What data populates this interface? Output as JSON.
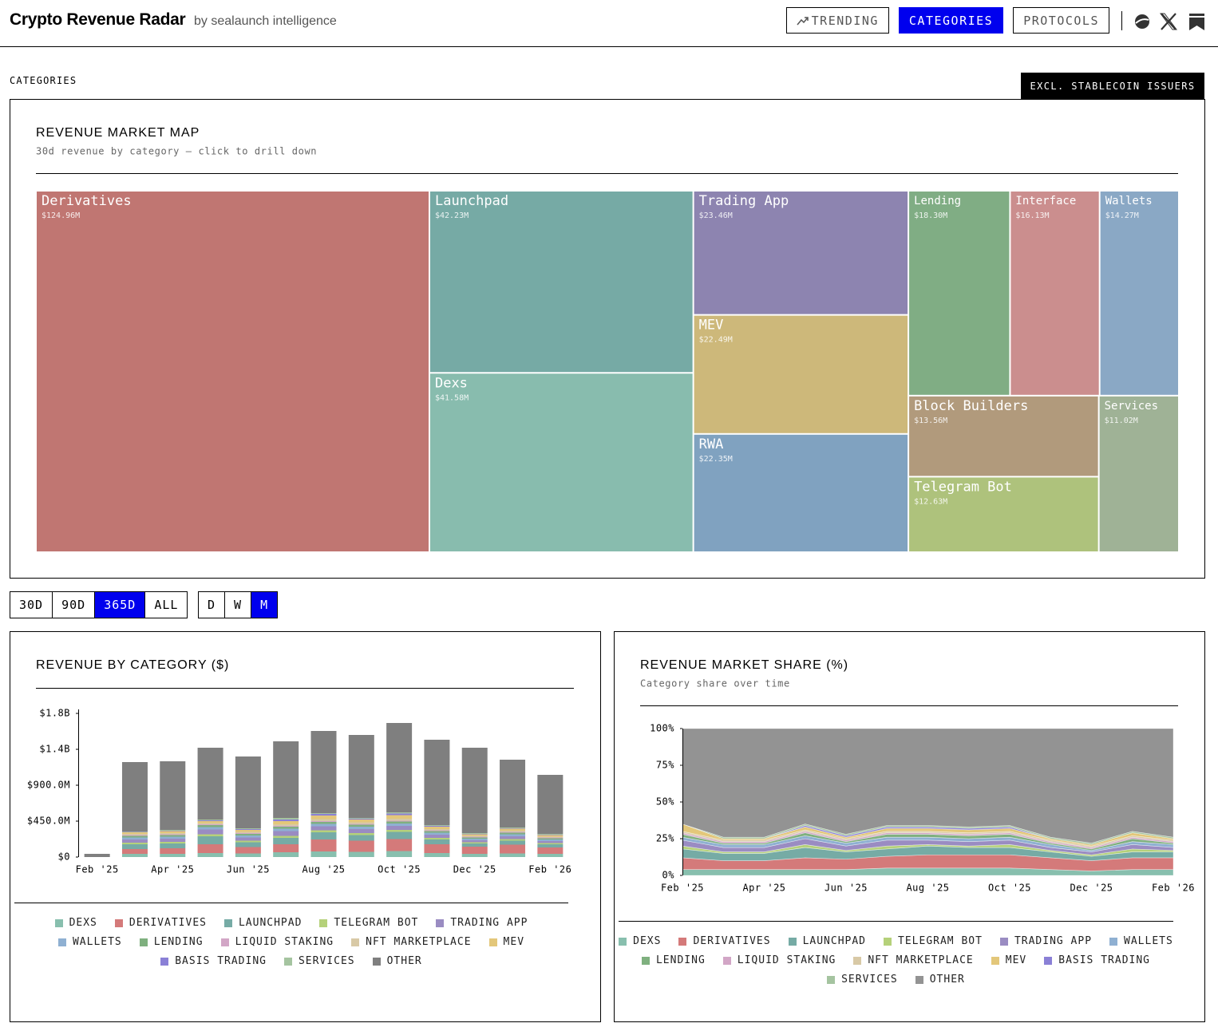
{
  "header": {
    "title": "Crypto Revenue Radar",
    "subtitle": "by sealaunch intelligence"
  },
  "nav": {
    "items": [
      "TRENDING",
      "CATEGORIES",
      "PROTOCOLS"
    ],
    "selected": 1
  },
  "section": {
    "label": "CATEGORIES",
    "toggle": "EXCL. STABLECOIN ISSUERS"
  },
  "filters": {
    "ranges": [
      "30D",
      "90D",
      "365D",
      "ALL"
    ],
    "range_selected": 2,
    "intervals": [
      "D",
      "W",
      "M"
    ],
    "interval_selected": 2
  },
  "chart_data": [
    {
      "type": "treemap",
      "title": "REVENUE MARKET MAP",
      "subtitle": "30d revenue by category — click to drill down",
      "categories": [
        "Derivatives",
        "Launchpad",
        "Dexs",
        "Trading App",
        "MEV",
        "RWA",
        "Lending",
        "Interface",
        "Wallets",
        "Block Builders",
        "Telegram Bot",
        "Services"
      ],
      "values": [
        124.96,
        42.23,
        41.58,
        23.46,
        22.49,
        22.35,
        18.3,
        16.13,
        14.27,
        13.56,
        12.63,
        11.02
      ],
      "value_labels": [
        "$124.96M",
        "$42.23M",
        "$41.58M",
        "$23.46M",
        "$22.49M",
        "$22.35M",
        "$18.30M",
        "$16.13M",
        "$14.27M",
        "$13.56M",
        "$12.63M",
        "$11.02M"
      ],
      "colors": [
        "#c07672",
        "#76aaa5",
        "#88bcae",
        "#8d84b0",
        "#cdb87a",
        "#80a2c0",
        "#80ad84",
        "#cb8e8e",
        "#8aa8c5",
        "#b19a7c",
        "#aec27c",
        "#9fb296"
      ]
    },
    {
      "type": "bar",
      "stacked": true,
      "title": "REVENUE BY CATEGORY ($)",
      "categories": [
        "Feb '25",
        null,
        "Apr '25",
        null,
        "Jun '25",
        null,
        "Aug '25",
        null,
        "Oct '25",
        null,
        "Dec '25",
        null,
        "Feb '26"
      ],
      "ylim": [
        0,
        1800
      ],
      "yticks": [
        {
          "value": 0,
          "label": "$0"
        },
        {
          "value": 450,
          "label": "$450.0M"
        },
        {
          "value": 900,
          "label": "$900.0M"
        },
        {
          "value": 1350,
          "label": "$1.4B"
        },
        {
          "value": 1800,
          "label": "$1.8B"
        }
      ],
      "series": [
        {
          "name": "DEXS",
          "color": "#88bfae",
          "values": [
            0,
            40,
            40,
            50,
            45,
            60,
            70,
            65,
            75,
            50,
            40,
            45,
            40
          ]
        },
        {
          "name": "DERIVATIVES",
          "color": "#d47a7a",
          "values": [
            0,
            60,
            70,
            110,
            80,
            100,
            150,
            140,
            150,
            110,
            90,
            110,
            80
          ]
        },
        {
          "name": "LAUNCHPAD",
          "color": "#76aba5",
          "values": [
            0,
            60,
            60,
            100,
            60,
            80,
            90,
            70,
            90,
            60,
            40,
            50,
            40
          ]
        },
        {
          "name": "TELEGRAM BOT",
          "color": "#b5d17a",
          "values": [
            0,
            20,
            20,
            25,
            20,
            25,
            25,
            25,
            25,
            20,
            15,
            20,
            15
          ]
        },
        {
          "name": "TRADING APP",
          "color": "#9a8cc2",
          "values": [
            0,
            40,
            40,
            60,
            40,
            60,
            50,
            50,
            50,
            40,
            25,
            35,
            25
          ]
        },
        {
          "name": "WALLETS",
          "color": "#8fb0d2",
          "values": [
            0,
            25,
            25,
            30,
            25,
            30,
            30,
            30,
            30,
            25,
            20,
            25,
            20
          ]
        },
        {
          "name": "LENDING",
          "color": "#7fb07f",
          "values": [
            0,
            20,
            20,
            25,
            20,
            25,
            25,
            25,
            25,
            20,
            15,
            20,
            15
          ]
        },
        {
          "name": "LIQUID STAKING",
          "color": "#d2a6c6",
          "values": [
            0,
            10,
            10,
            10,
            10,
            10,
            10,
            10,
            10,
            10,
            10,
            10,
            10
          ]
        },
        {
          "name": "NFT MARKETPLACE",
          "color": "#d8c9a6",
          "values": [
            0,
            15,
            15,
            15,
            15,
            20,
            25,
            20,
            25,
            15,
            10,
            15,
            10
          ]
        },
        {
          "name": "MEV",
          "color": "#e3c77a",
          "values": [
            0,
            20,
            25,
            25,
            25,
            40,
            45,
            35,
            45,
            30,
            20,
            25,
            20
          ]
        },
        {
          "name": "BASIS TRADING",
          "color": "#8a80d6",
          "values": [
            0,
            5,
            5,
            10,
            10,
            20,
            20,
            10,
            20,
            10,
            5,
            5,
            5
          ]
        },
        {
          "name": "SERVICES",
          "color": "#a5c4a0",
          "values": [
            0,
            5,
            10,
            10,
            10,
            20,
            10,
            10,
            15,
            10,
            10,
            10,
            10
          ]
        },
        {
          "name": "OTHER",
          "color": "#7f7f7f",
          "values": [
            40,
            870,
            860,
            900,
            900,
            960,
            1030,
            1040,
            1120,
            1070,
            1070,
            850,
            740
          ]
        }
      ]
    },
    {
      "type": "area",
      "stacked": true,
      "title": "REVENUE MARKET SHARE (%)",
      "subtitle": "Category share over time",
      "categories": [
        "Feb '25",
        null,
        "Apr '25",
        null,
        "Jun '25",
        null,
        "Aug '25",
        null,
        "Oct '25",
        null,
        "Dec '25",
        null,
        "Feb '26"
      ],
      "ylim": [
        0,
        100
      ],
      "yticks": [
        {
          "value": 0,
          "label": "0%"
        },
        {
          "value": 25,
          "label": "25%"
        },
        {
          "value": 50,
          "label": "50%"
        },
        {
          "value": 75,
          "label": "75%"
        },
        {
          "value": 100,
          "label": "100%"
        }
      ],
      "series": [
        {
          "name": "DEXS",
          "color": "#88bfae",
          "values": [
            4,
            4,
            4,
            4,
            4,
            5,
            5,
            5,
            5,
            4,
            3,
            4,
            4
          ]
        },
        {
          "name": "DERIVATIVES",
          "color": "#d47a7a",
          "values": [
            8,
            6,
            6,
            8,
            7,
            8,
            9,
            9,
            9,
            8,
            7,
            8,
            8
          ]
        },
        {
          "name": "LAUNCHPAD",
          "color": "#76aba5",
          "values": [
            6,
            5,
            5,
            7,
            5,
            5,
            6,
            5,
            5,
            4,
            3,
            4,
            4
          ]
        },
        {
          "name": "TELEGRAM BOT",
          "color": "#b5d17a",
          "values": [
            2,
            1,
            1,
            2,
            1,
            2,
            1,
            1,
            2,
            1,
            1,
            2,
            1
          ]
        },
        {
          "name": "TRADING APP",
          "color": "#9a8cc2",
          "values": [
            4,
            3,
            3,
            4,
            3,
            4,
            3,
            3,
            3,
            2,
            2,
            3,
            2
          ]
        },
        {
          "name": "WALLETS",
          "color": "#8fb0d2",
          "values": [
            2,
            2,
            2,
            2,
            2,
            2,
            2,
            2,
            2,
            2,
            1,
            2,
            2
          ]
        },
        {
          "name": "LENDING",
          "color": "#7fb07f",
          "values": [
            2,
            1,
            1,
            2,
            1,
            2,
            2,
            2,
            2,
            1,
            1,
            2,
            1
          ]
        },
        {
          "name": "LIQUID STAKING",
          "color": "#d2a6c6",
          "values": [
            1,
            1,
            1,
            1,
            1,
            1,
            1,
            1,
            1,
            1,
            1,
            1,
            1
          ]
        },
        {
          "name": "NFT MARKETPLACE",
          "color": "#d8c9a6",
          "values": [
            1,
            1,
            1,
            1,
            1,
            1,
            1,
            1,
            1,
            1,
            1,
            1,
            1
          ]
        },
        {
          "name": "MEV",
          "color": "#e3c77a",
          "values": [
            5,
            1,
            1,
            2,
            1,
            2,
            2,
            2,
            2,
            1,
            1,
            2,
            1
          ]
        },
        {
          "name": "BASIS TRADING",
          "color": "#8a80d6",
          "values": [
            0,
            0,
            0,
            1,
            1,
            1,
            1,
            1,
            1,
            0,
            0,
            0,
            0
          ]
        },
        {
          "name": "SERVICES",
          "color": "#a5c4a0",
          "values": [
            0,
            1,
            1,
            1,
            1,
            1,
            1,
            1,
            1,
            1,
            1,
            1,
            1
          ]
        },
        {
          "name": "OTHER",
          "color": "#939393",
          "values": [
            65,
            74,
            74,
            65,
            72,
            66,
            66,
            67,
            66,
            74,
            78,
            70,
            74
          ]
        }
      ]
    }
  ]
}
